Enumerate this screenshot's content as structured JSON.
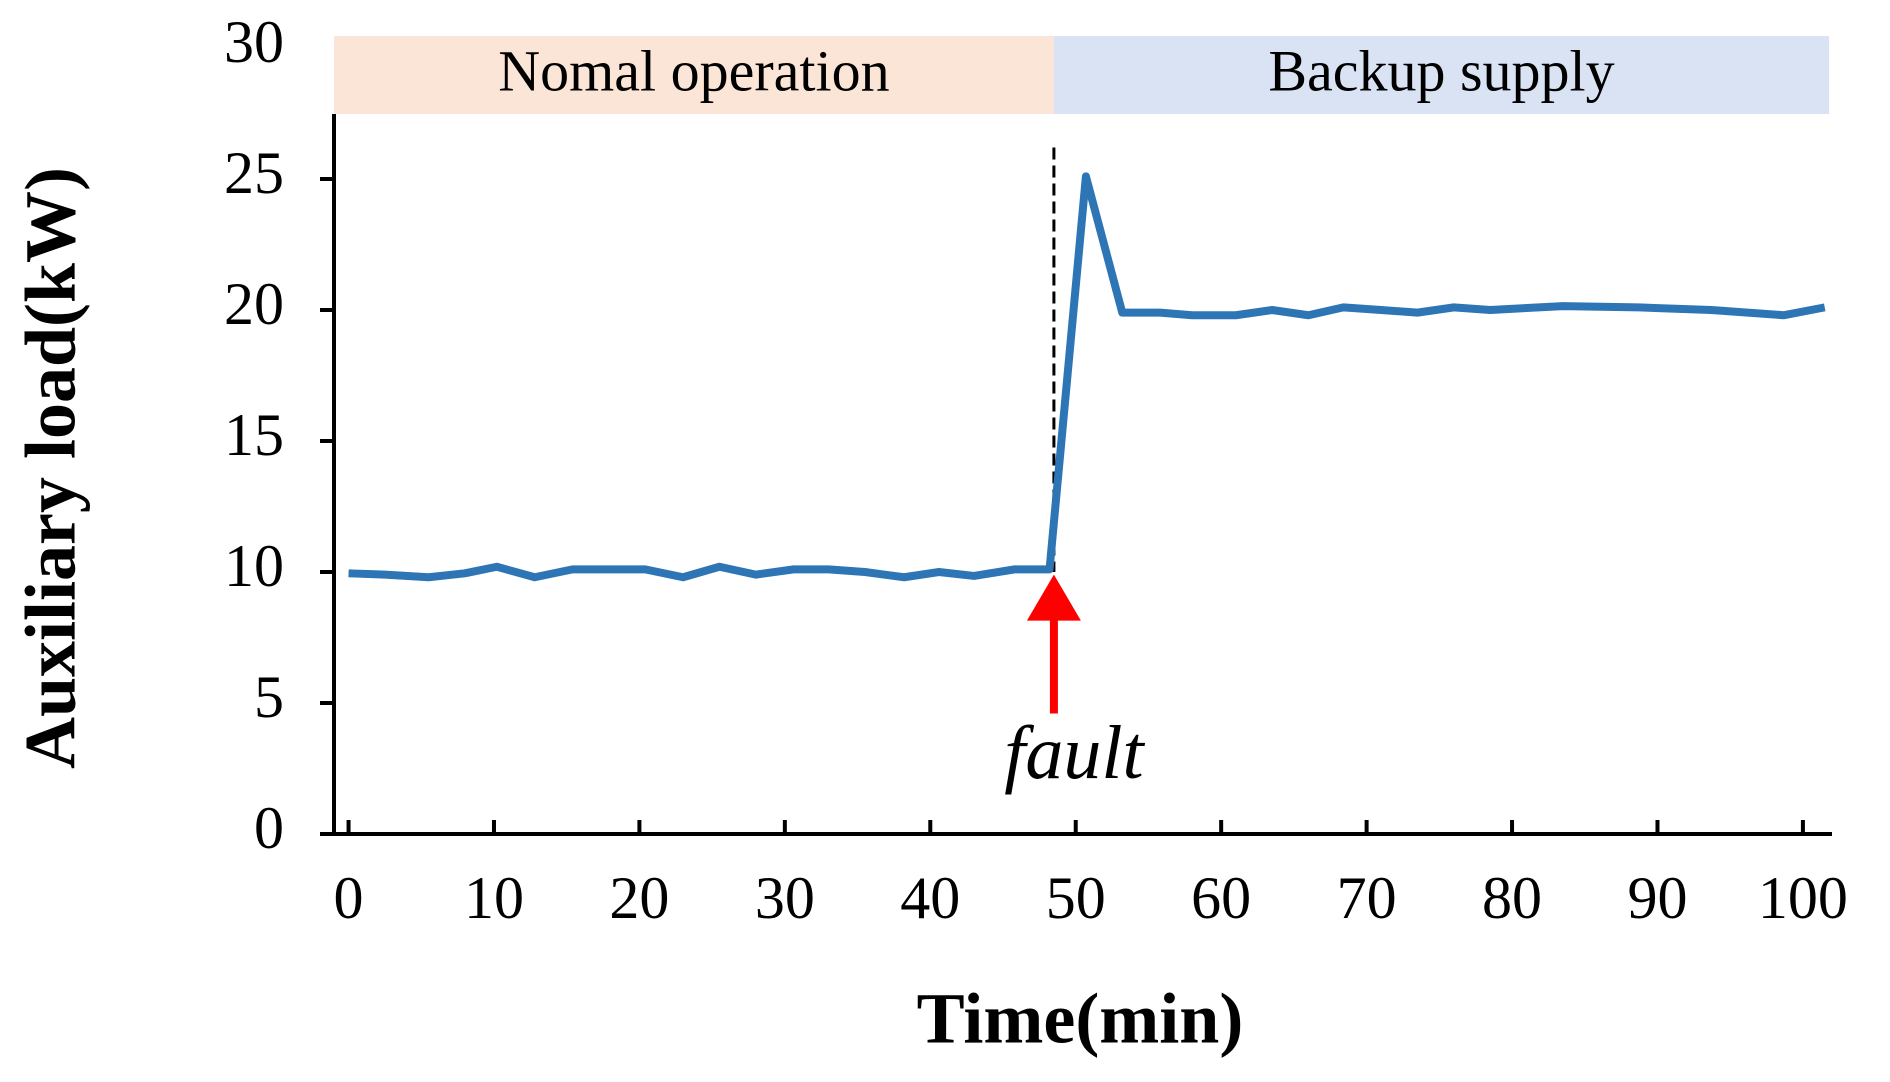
{
  "chart_data": {
    "type": "line",
    "x_label": "Time(min)",
    "y_label": "Auxiliary load(kW)",
    "xlim": [
      -1,
      102
    ],
    "ylim": [
      0,
      30
    ],
    "xticks": [
      0,
      10,
      20,
      30,
      40,
      50,
      60,
      70,
      80,
      90,
      100
    ],
    "yticks": [
      0,
      5,
      10,
      15,
      20,
      25,
      30
    ],
    "bands": [
      {
        "label": "Nomal operation",
        "color": "#fbe5d6",
        "start": -1,
        "end": 48.5
      },
      {
        "label": "Backup supply",
        "color": "#dae3f3",
        "start": 48.5,
        "end": 101.8
      }
    ],
    "annotation": {
      "text": "fault",
      "x": 48.5,
      "color": "#ff0000"
    },
    "series": [
      {
        "name": "Auxiliary load",
        "color": "#2e75b6",
        "x": [
          0,
          2.5,
          5.5,
          8,
          10.2,
          12.8,
          15.4,
          18,
          20.4,
          23,
          25.5,
          28,
          30.6,
          33,
          35.5,
          38.2,
          40.6,
          43,
          45.8,
          48.2,
          50.7,
          53.2,
          55.8,
          58,
          61,
          63.5,
          66,
          68.4,
          71,
          73.5,
          76,
          78.5,
          83.5,
          88.7,
          93.7,
          98.7,
          101.5
        ],
        "values": [
          9.95,
          9.9,
          9.8,
          9.95,
          10.2,
          9.8,
          10.1,
          10.1,
          10.1,
          9.8,
          10.2,
          9.9,
          10.1,
          10.1,
          10.0,
          9.8,
          10.0,
          9.85,
          10.1,
          10.1,
          25.1,
          19.9,
          19.9,
          19.8,
          19.8,
          20.0,
          19.8,
          20.1,
          20.0,
          19.9,
          20.1,
          20.0,
          20.15,
          20.1,
          20.0,
          19.8,
          20.1
        ]
      }
    ]
  }
}
